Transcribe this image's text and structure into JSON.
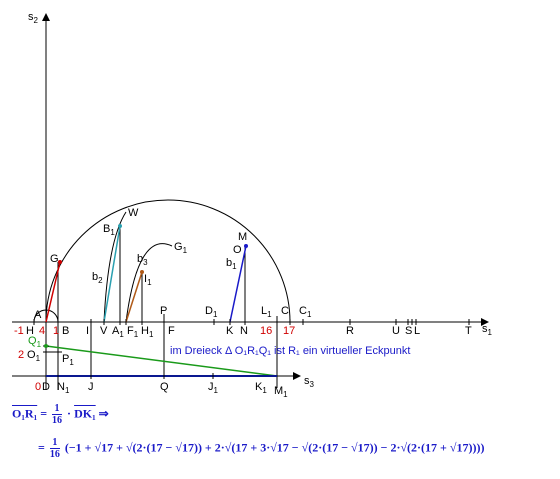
{
  "axes": {
    "s1": "s",
    "s1_sub": "1",
    "s2": "s",
    "s2_sub": "2",
    "s3": "s",
    "s3_sub": "3"
  },
  "labels": {
    "A": "A",
    "B": "B",
    "C": "C",
    "C1": "C",
    "C1_sub": "1",
    "D": "D",
    "D1": "D",
    "D1_sub": "1",
    "F": "F",
    "F1": "F",
    "F1_sub": "1",
    "G": "G",
    "G1": "G",
    "G1_sub": "1",
    "H": "H",
    "H1": "H",
    "H1_sub": "1",
    "I": "I",
    "I1": "I",
    "I1_sub": "1",
    "J": "J",
    "J1": "J",
    "J1_sub": "1",
    "K": "K",
    "K1": "K",
    "K1_sub": "1",
    "L": "L",
    "L1": "L",
    "L1_sub": "1",
    "M": "M",
    "M1": "M",
    "M1_sub": "1",
    "N": "N",
    "N1": "N",
    "N1_sub": "1",
    "O": "O",
    "O1": "O",
    "O1_sub": "1",
    "P": "P",
    "P1": "P",
    "P1_sub": "1",
    "Q": "Q",
    "Q1": "Q",
    "Q1_sub": "1",
    "R": "R",
    "S": "S",
    "T": "T",
    "U": "U",
    "V": "V",
    "W": "W",
    "A1": "A",
    "A1_sub": "1",
    "B1": "B",
    "B1_sub": "1",
    "b1": "b",
    "b1_sub": "1",
    "b2": "b",
    "b2_sub": "2",
    "b3": "b",
    "b3_sub": "3"
  },
  "numbers": {
    "minus1": "-1",
    "n4": "4",
    "n1": "1",
    "n16": "16",
    "n17": "17",
    "n2": "2",
    "n0": "0"
  },
  "note": "im Dreieck Δ O₁R₁Q₁ ist R₁ ein virtueller Eckpunkt",
  "formula": {
    "line1_lhs": "O₁R₁",
    "eq": "=",
    "frac_num": "1",
    "frac_den": "16",
    "dot": "·",
    "line1_rhs": "DK₁",
    "implies": "⇒",
    "line2": "(−1 + √17 + √(2·(17 − √17)) + 2·√(17 + 3·√17 − √(2·(17 − √17)) − 2·√(2·(17 + √17))))"
  },
  "colors": {
    "red": "#d00000",
    "green": "#1a9a1a",
    "blue": "#1a1ac8",
    "teal": "#2aa0b0",
    "orange": "#b05a18",
    "navy": "#0a1890"
  }
}
